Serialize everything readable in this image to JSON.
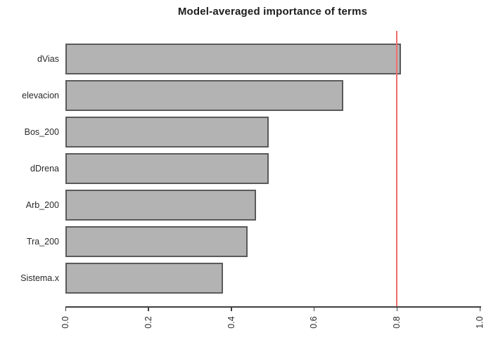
{
  "chart_data": {
    "type": "bar",
    "orientation": "horizontal",
    "title": "Model-averaged importance of terms",
    "categories": [
      "dVias",
      "elevacion",
      "Bos_200",
      "dDrena",
      "Arb_200",
      "Tra_200",
      "Sistema.x"
    ],
    "values": [
      0.81,
      0.67,
      0.49,
      0.49,
      0.46,
      0.44,
      0.38
    ],
    "xlabel": "",
    "ylabel": "",
    "xlim": [
      0.0,
      1.0
    ],
    "x_ticks": [
      0.0,
      0.2,
      0.4,
      0.6,
      0.8,
      1.0
    ],
    "x_tick_labels": [
      "0.0",
      "0.2",
      "0.4",
      "0.6",
      "0.8",
      "1.0"
    ],
    "reference_line": {
      "value": 0.8,
      "color": "#f16c6c"
    },
    "grid": false,
    "legend": null,
    "colors": {
      "bar_fill": "#b3b3b3",
      "bar_border": "#5a5a5a",
      "axis": "#3f3f3f",
      "text": "#2a2a2a",
      "background": "#ffffff"
    }
  }
}
